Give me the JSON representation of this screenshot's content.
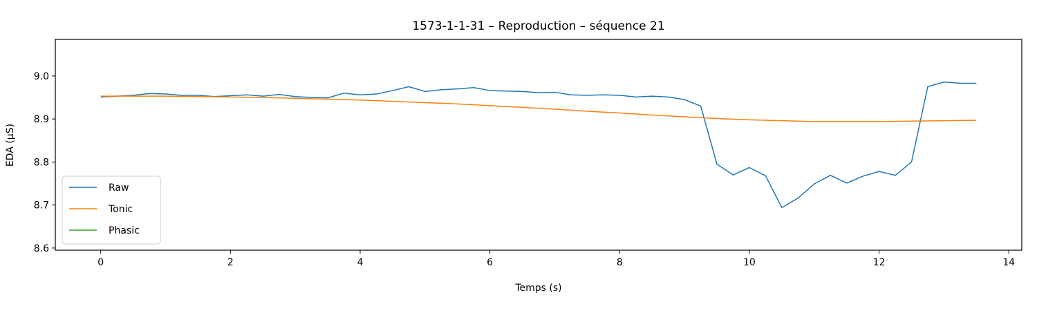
{
  "chart_data": {
    "type": "line",
    "title": "1573-1-1-31 – Reproduction – séquence 21",
    "xlabel": "Temps (s)",
    "ylabel": "EDA (µS)",
    "xlim": [
      -0.7,
      14.2
    ],
    "ylim": [
      8.595,
      9.085
    ],
    "xticks": [
      0,
      2,
      4,
      6,
      8,
      10,
      12,
      14
    ],
    "xtick_labels": [
      "0",
      "2",
      "4",
      "6",
      "8",
      "10",
      "12",
      "14"
    ],
    "yticks": [
      8.6,
      8.7,
      8.8,
      8.9,
      9.0
    ],
    "ytick_labels": [
      "8.6",
      "8.7",
      "8.8",
      "8.9",
      "9.0"
    ],
    "grid": false,
    "legend_position": "lower-left",
    "series": [
      {
        "name": "Raw",
        "color": "#1f77b4",
        "x": [
          0,
          0.25,
          0.5,
          0.75,
          1.0,
          1.25,
          1.5,
          1.75,
          2.0,
          2.25,
          2.5,
          2.75,
          3.0,
          3.25,
          3.5,
          3.75,
          4.0,
          4.25,
          4.5,
          4.75,
          5.0,
          5.25,
          5.5,
          5.75,
          6.0,
          6.25,
          6.5,
          6.75,
          7.0,
          7.25,
          7.5,
          7.75,
          8.0,
          8.25,
          8.5,
          8.75,
          9.0,
          9.25,
          9.5,
          9.75,
          10.0,
          10.25,
          10.5,
          10.75,
          11.0,
          11.25,
          11.5,
          11.75,
          12.0,
          12.25,
          12.5,
          12.75,
          13.0,
          13.25,
          13.5
        ],
        "values": [
          8.951,
          8.953,
          8.955,
          8.959,
          8.958,
          8.955,
          8.955,
          8.952,
          8.954,
          8.956,
          8.953,
          8.957,
          8.952,
          8.95,
          8.949,
          8.96,
          8.956,
          8.958,
          8.966,
          8.975,
          8.964,
          8.968,
          8.97,
          8.973,
          8.966,
          8.965,
          8.964,
          8.961,
          8.962,
          8.956,
          8.955,
          8.956,
          8.955,
          8.951,
          8.953,
          8.951,
          8.945,
          8.93,
          8.795,
          8.77,
          8.787,
          8.768,
          8.694,
          8.716,
          8.749,
          8.769,
          8.751,
          8.767,
          8.778,
          8.769,
          8.8,
          8.975,
          8.986,
          8.983,
          8.983
        ]
      },
      {
        "name": "Tonic",
        "color": "#ff7f0e",
        "x": [
          0,
          0.5,
          1.0,
          1.5,
          2.0,
          2.5,
          3.0,
          3.5,
          4.0,
          4.5,
          5.0,
          5.5,
          6.0,
          6.5,
          7.0,
          7.5,
          8.0,
          8.5,
          9.0,
          9.5,
          10.0,
          10.5,
          11.0,
          11.5,
          12.0,
          12.5,
          13.0,
          13.5
        ],
        "values": [
          8.953,
          8.953,
          8.953,
          8.952,
          8.951,
          8.95,
          8.948,
          8.946,
          8.944,
          8.941,
          8.938,
          8.935,
          8.931,
          8.927,
          8.923,
          8.918,
          8.914,
          8.909,
          8.905,
          8.901,
          8.898,
          8.896,
          8.894,
          8.894,
          8.894,
          8.895,
          8.896,
          8.897
        ]
      },
      {
        "name": "Phasic",
        "color": "#2ca02c",
        "x": [],
        "values": []
      }
    ]
  }
}
